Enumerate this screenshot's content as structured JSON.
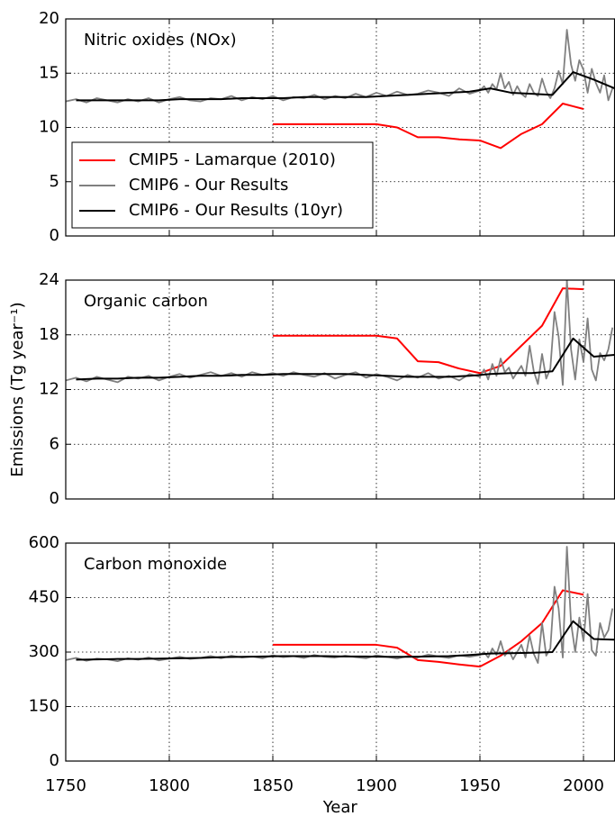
{
  "chart_data": [
    {
      "type": "line",
      "title": "Nitric oxides (NOx)",
      "xlim": [
        1750,
        2015
      ],
      "xticks": [
        1750,
        1800,
        1850,
        1900,
        1950,
        2000
      ],
      "ylim": [
        0,
        20
      ],
      "yticks": [
        0,
        5,
        10,
        15,
        20
      ],
      "grid": true,
      "legend": "center left",
      "series": [
        {
          "name": "CMIP5 - Lamarque (2010)",
          "color": "#ff0000",
          "x": [
            1850,
            1860,
            1870,
            1880,
            1890,
            1900,
            1910,
            1920,
            1930,
            1940,
            1950,
            1960,
            1970,
            1980,
            1990,
            2000
          ],
          "values": [
            10.3,
            10.3,
            10.3,
            10.3,
            10.3,
            10.3,
            10.0,
            9.1,
            9.1,
            8.9,
            8.8,
            8.1,
            9.4,
            10.3,
            12.2,
            11.7
          ]
        },
        {
          "name": "CMIP6 - Our Results",
          "color": "#808080",
          "x": [
            1750,
            1755,
            1760,
            1765,
            1770,
            1775,
            1780,
            1785,
            1790,
            1795,
            1800,
            1805,
            1810,
            1815,
            1820,
            1825,
            1830,
            1835,
            1840,
            1845,
            1850,
            1855,
            1860,
            1865,
            1870,
            1875,
            1880,
            1885,
            1890,
            1895,
            1900,
            1905,
            1910,
            1915,
            1920,
            1925,
            1930,
            1935,
            1940,
            1945,
            1950,
            1952,
            1954,
            1956,
            1958,
            1960,
            1962,
            1964,
            1966,
            1968,
            1970,
            1972,
            1974,
            1976,
            1978,
            1980,
            1982,
            1984,
            1986,
            1988,
            1990,
            1992,
            1994,
            1996,
            1998,
            2000,
            2002,
            2004,
            2006,
            2008,
            2010,
            2012,
            2014
          ],
          "values": [
            12.4,
            12.6,
            12.3,
            12.7,
            12.5,
            12.3,
            12.6,
            12.4,
            12.7,
            12.3,
            12.6,
            12.8,
            12.5,
            12.4,
            12.7,
            12.6,
            12.9,
            12.5,
            12.8,
            12.6,
            12.9,
            12.5,
            12.8,
            12.7,
            13.0,
            12.6,
            12.9,
            12.7,
            13.1,
            12.8,
            13.2,
            12.9,
            13.3,
            13.0,
            13.1,
            13.4,
            13.2,
            12.9,
            13.6,
            13.1,
            13.4,
            13.8,
            13.2,
            14.0,
            13.5,
            15.0,
            13.6,
            14.2,
            13.0,
            13.8,
            13.1,
            12.8,
            14.0,
            13.2,
            12.9,
            14.5,
            13.3,
            12.7,
            13.6,
            15.2,
            14.0,
            19.0,
            15.8,
            14.3,
            16.2,
            15.3,
            13.2,
            15.4,
            14.1,
            13.2,
            14.8,
            12.5,
            13.6
          ]
        },
        {
          "name": "CMIP6 - Our Results (10yr)",
          "color": "#000000",
          "x": [
            1755,
            1765,
            1775,
            1785,
            1795,
            1805,
            1815,
            1825,
            1835,
            1845,
            1855,
            1865,
            1875,
            1885,
            1895,
            1905,
            1915,
            1925,
            1935,
            1945,
            1955,
            1965,
            1975,
            1985,
            1995,
            2005,
            2015
          ],
          "values": [
            12.5,
            12.5,
            12.5,
            12.5,
            12.5,
            12.6,
            12.6,
            12.6,
            12.7,
            12.7,
            12.7,
            12.8,
            12.8,
            12.8,
            12.8,
            12.9,
            13.0,
            13.1,
            13.2,
            13.3,
            13.6,
            13.2,
            13.1,
            13.0,
            15.1,
            14.4,
            13.6
          ]
        }
      ]
    },
    {
      "type": "line",
      "title": "Organic carbon",
      "ylabel": "Emissions (Tg year⁻¹)",
      "xlim": [
        1750,
        2015
      ],
      "xticks": [
        1750,
        1800,
        1850,
        1900,
        1950,
        2000
      ],
      "ylim": [
        0,
        24
      ],
      "yticks": [
        0,
        6,
        12,
        18,
        24
      ],
      "grid": true,
      "series": [
        {
          "color": "#ff0000",
          "x": [
            1850,
            1860,
            1870,
            1880,
            1890,
            1900,
            1910,
            1920,
            1930,
            1940,
            1950,
            1960,
            1970,
            1980,
            1990,
            2000
          ],
          "values": [
            17.9,
            17.9,
            17.9,
            17.9,
            17.9,
            17.9,
            17.6,
            15.1,
            15.0,
            14.3,
            13.8,
            14.6,
            16.8,
            19.0,
            23.1,
            23.0
          ]
        },
        {
          "color": "#808080",
          "x": [
            1750,
            1755,
            1760,
            1765,
            1770,
            1775,
            1780,
            1785,
            1790,
            1795,
            1800,
            1805,
            1810,
            1815,
            1820,
            1825,
            1830,
            1835,
            1840,
            1845,
            1850,
            1855,
            1860,
            1865,
            1870,
            1875,
            1880,
            1885,
            1890,
            1895,
            1900,
            1905,
            1910,
            1915,
            1920,
            1925,
            1930,
            1935,
            1940,
            1945,
            1950,
            1952,
            1954,
            1956,
            1958,
            1960,
            1962,
            1964,
            1966,
            1968,
            1970,
            1972,
            1974,
            1976,
            1978,
            1980,
            1982,
            1984,
            1986,
            1988,
            1990,
            1992,
            1994,
            1996,
            1998,
            2000,
            2002,
            2004,
            2006,
            2008,
            2010,
            2012,
            2014
          ],
          "values": [
            13.0,
            13.3,
            12.9,
            13.4,
            13.1,
            12.8,
            13.4,
            13.2,
            13.5,
            13.0,
            13.4,
            13.7,
            13.3,
            13.6,
            13.9,
            13.5,
            13.8,
            13.4,
            13.9,
            13.6,
            13.8,
            13.5,
            13.9,
            13.6,
            13.4,
            13.8,
            13.2,
            13.6,
            13.9,
            13.3,
            13.7,
            13.4,
            13.0,
            13.6,
            13.3,
            13.8,
            13.2,
            13.5,
            13.0,
            13.7,
            13.4,
            14.2,
            13.1,
            14.8,
            13.5,
            15.4,
            13.9,
            14.4,
            13.2,
            13.9,
            14.6,
            13.5,
            16.8,
            14.0,
            12.6,
            15.9,
            13.2,
            14.3,
            20.5,
            17.8,
            12.5,
            24.0,
            16.4,
            13.1,
            17.5,
            15.0,
            19.8,
            14.2,
            13.0,
            16.0,
            15.2,
            16.4,
            18.8
          ]
        },
        {
          "color": "#000000",
          "x": [
            1755,
            1765,
            1775,
            1785,
            1795,
            1805,
            1815,
            1825,
            1835,
            1845,
            1855,
            1865,
            1875,
            1885,
            1895,
            1905,
            1915,
            1925,
            1935,
            1945,
            1955,
            1965,
            1975,
            1985,
            1995,
            2005,
            2015
          ],
          "values": [
            13.1,
            13.2,
            13.2,
            13.3,
            13.3,
            13.4,
            13.5,
            13.5,
            13.6,
            13.6,
            13.7,
            13.7,
            13.7,
            13.7,
            13.6,
            13.5,
            13.4,
            13.4,
            13.4,
            13.5,
            13.7,
            13.8,
            13.8,
            14.0,
            17.6,
            15.6,
            15.8
          ]
        }
      ]
    },
    {
      "type": "line",
      "title": "Carbon monoxide",
      "xlabel": "Year",
      "xlim": [
        1750,
        2015
      ],
      "xticks": [
        1750,
        1800,
        1850,
        1900,
        1950,
        2000
      ],
      "ylim": [
        0,
        600
      ],
      "yticks": [
        0,
        150,
        300,
        450,
        600
      ],
      "grid": true,
      "series": [
        {
          "color": "#ff0000",
          "x": [
            1850,
            1860,
            1870,
            1880,
            1890,
            1900,
            1910,
            1920,
            1930,
            1940,
            1950,
            1960,
            1970,
            1980,
            1990,
            2000
          ],
          "values": [
            320,
            320,
            320,
            320,
            320,
            320,
            312,
            278,
            273,
            266,
            260,
            290,
            330,
            380,
            470,
            458
          ]
        },
        {
          "color": "#808080",
          "x": [
            1750,
            1755,
            1760,
            1765,
            1770,
            1775,
            1780,
            1785,
            1790,
            1795,
            1800,
            1805,
            1810,
            1815,
            1820,
            1825,
            1830,
            1835,
            1840,
            1845,
            1850,
            1855,
            1860,
            1865,
            1870,
            1875,
            1880,
            1885,
            1890,
            1895,
            1900,
            1905,
            1910,
            1915,
            1920,
            1925,
            1930,
            1935,
            1940,
            1945,
            1950,
            1952,
            1954,
            1956,
            1958,
            1960,
            1962,
            1964,
            1966,
            1968,
            1970,
            1972,
            1974,
            1976,
            1978,
            1980,
            1982,
            1984,
            1986,
            1988,
            1990,
            1992,
            1994,
            1996,
            1998,
            2000,
            2002,
            2004,
            2006,
            2008,
            2010,
            2012,
            2014
          ],
          "values": [
            278,
            284,
            276,
            282,
            280,
            275,
            283,
            279,
            285,
            277,
            282,
            287,
            281,
            284,
            289,
            283,
            290,
            285,
            288,
            283,
            291,
            286,
            289,
            284,
            292,
            287,
            285,
            290,
            286,
            283,
            291,
            287,
            282,
            289,
            285,
            293,
            288,
            284,
            291,
            287,
            292,
            300,
            285,
            310,
            292,
            330,
            290,
            305,
            280,
            300,
            320,
            285,
            345,
            295,
            270,
            380,
            290,
            310,
            480,
            420,
            285,
            590,
            380,
            300,
            395,
            330,
            460,
            305,
            290,
            380,
            340,
            360,
            420
          ]
        },
        {
          "color": "#000000",
          "x": [
            1755,
            1765,
            1775,
            1785,
            1795,
            1805,
            1815,
            1825,
            1835,
            1845,
            1855,
            1865,
            1875,
            1885,
            1895,
            1905,
            1915,
            1925,
            1935,
            1945,
            1955,
            1965,
            1975,
            1985,
            1995,
            2005,
            2015
          ],
          "values": [
            279,
            280,
            281,
            281,
            282,
            283,
            284,
            286,
            287,
            288,
            289,
            289,
            289,
            288,
            288,
            287,
            287,
            288,
            289,
            292,
            296,
            297,
            298,
            300,
            385,
            336,
            334
          ]
        }
      ]
    }
  ]
}
